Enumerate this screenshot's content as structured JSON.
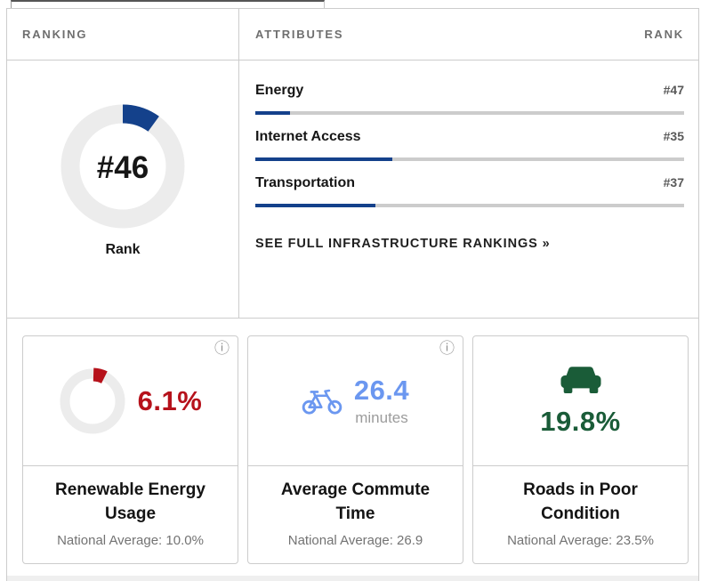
{
  "colors": {
    "navy": "#14418b"
  },
  "ranking": {
    "header": "RANKING",
    "value": "#46",
    "label": "Rank",
    "fill_pct": 10
  },
  "attributes": {
    "header": "ATTRIBUTES",
    "rank_header": "RANK",
    "rows": [
      {
        "label": "Energy",
        "rank": "#47",
        "fill_pct": 8
      },
      {
        "label": "Internet Access",
        "rank": "#35",
        "fill_pct": 32
      },
      {
        "label": "Transportation",
        "rank": "#37",
        "fill_pct": 28
      }
    ],
    "link_label": "SEE FULL INFRASTRUCTURE RANKINGS »"
  },
  "cards": [
    {
      "title": "Renewable Energy Usage",
      "value": "6.1%",
      "chart_pct": 6.8,
      "accent": "#b6121b",
      "national_average": "National Average: 10.0%"
    },
    {
      "title": "Average Commute Time",
      "value": "26.4",
      "unit": "minutes",
      "accent": "#6b97f0",
      "national_average": "National Average: 26.9"
    },
    {
      "title": "Roads in Poor Condition",
      "value": "19.8%",
      "accent": "#1a5c38",
      "national_average": "National Average: 23.5%"
    }
  ],
  "icons": {
    "info_glyph": "ⓘ"
  }
}
